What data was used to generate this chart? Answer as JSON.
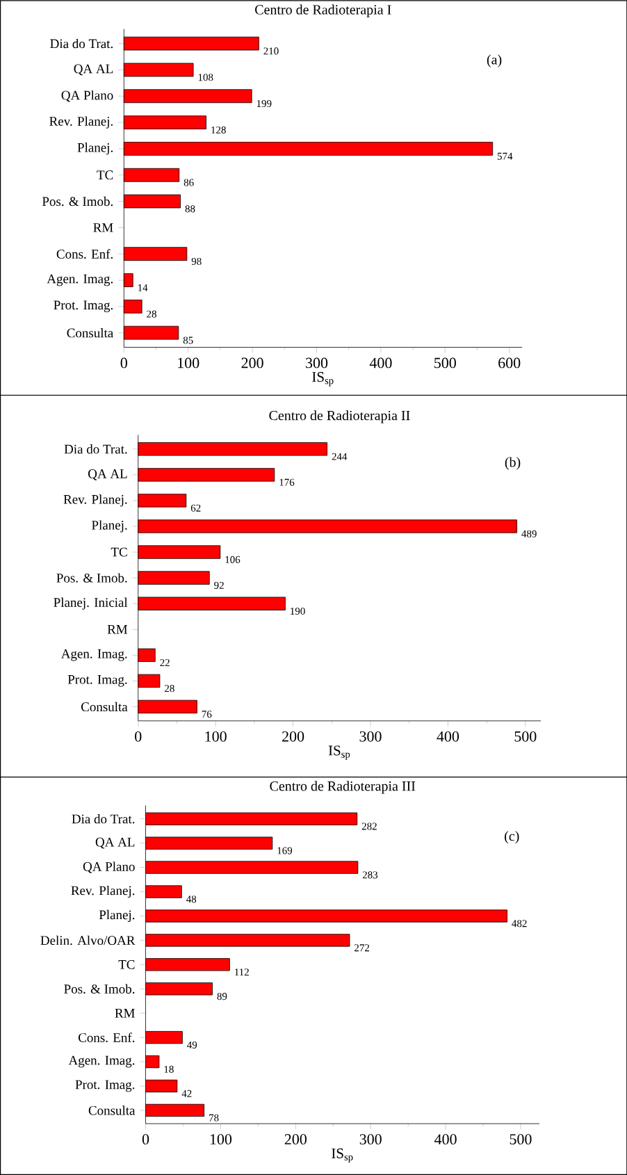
{
  "chart_data": [
    {
      "type": "bar",
      "orientation": "horizontal",
      "title": "Centro de Radioterapia I",
      "xlabel": "IS$_{sp}$",
      "color": "#ff0000",
      "data_labels": true,
      "annotations": [
        "(a)"
      ],
      "categories": [
        "Dia do Trat.",
        "QA AL",
        "QA Plano",
        "Rev. Planej.",
        "Planej.",
        "TC",
        "Pos. & Imob.",
        "RM",
        "Cons. Enf.",
        "Agen. Imag.",
        "Prot. Imag.",
        "Consulta"
      ],
      "values": [
        210,
        108,
        199,
        128,
        574,
        86,
        88,
        null,
        98,
        14,
        28,
        85
      ],
      "xlim": [
        0,
        620
      ],
      "xticks": [
        0,
        100,
        200,
        300,
        400,
        500,
        600
      ]
    },
    {
      "type": "bar",
      "orientation": "horizontal",
      "title": "Centro de Radioterapia II",
      "xlabel": "IS$_{sp}$",
      "color": "#ff0000",
      "data_labels": true,
      "annotations": [
        "(b)"
      ],
      "categories": [
        "Dia do Trat.",
        "QA AL",
        "Rev. Planej.",
        "Planej.",
        "TC",
        "Pos. & Imob.",
        "Planej. Inicial",
        "RM",
        "Agen. Imag.",
        "Prot. Imag.",
        "Consulta"
      ],
      "values": [
        244,
        176,
        62,
        489,
        106,
        92,
        190,
        null,
        22,
        28,
        76
      ],
      "xlim": [
        0,
        520
      ],
      "xticks": [
        0,
        100,
        200,
        300,
        400,
        500
      ]
    },
    {
      "type": "bar",
      "orientation": "horizontal",
      "title": "Centro de Radioterapia III",
      "xlabel": "IS$_{sp}$",
      "color": "#ff0000",
      "data_labels": true,
      "annotations": [
        "(c)"
      ],
      "categories": [
        "Dia do Trat.",
        "QA AL",
        "QA Plano",
        "Rev. Planej.",
        "Planej.",
        "Delin. Alvo/OAR",
        "TC",
        "Pos. & Imob.",
        "RM",
        "Cons. Enf.",
        "Agen. Imag.",
        "Prot. Imag.",
        "Consulta"
      ],
      "values": [
        282,
        169,
        283,
        48,
        482,
        272,
        112,
        89,
        null,
        49,
        18,
        42,
        78
      ],
      "xlim": [
        0,
        525
      ],
      "xticks": [
        0,
        100,
        200,
        300,
        400,
        500
      ]
    }
  ]
}
